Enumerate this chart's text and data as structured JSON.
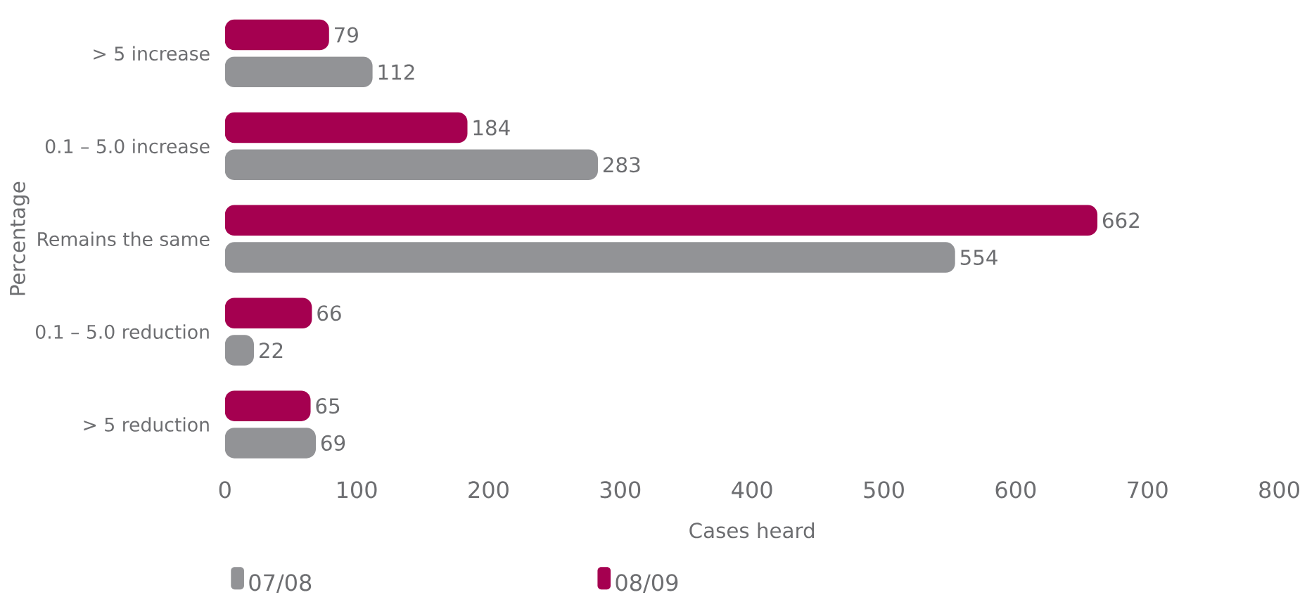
{
  "chart_data": {
    "type": "bar",
    "orientation": "horizontal",
    "xlabel": "Cases heard",
    "ylabel": "Percentage",
    "categories": [
      "> 5 increase",
      "0.1 – 5.0 increase",
      "Remains the same",
      "0.1 – 5.0 reduction",
      "> 5 reduction"
    ],
    "series": [
      {
        "name": "07/08",
        "color": "#929396",
        "values": [
          112,
          283,
          554,
          22,
          69
        ]
      },
      {
        "name": "08/09",
        "color": "#a50050",
        "values": [
          79,
          184,
          662,
          66,
          65
        ]
      }
    ],
    "xlim": [
      0,
      800
    ],
    "xticks": [
      0,
      100,
      200,
      300,
      400,
      500,
      600,
      700,
      800
    ],
    "data_labels": true,
    "legend": "bottom",
    "grid": false
  }
}
